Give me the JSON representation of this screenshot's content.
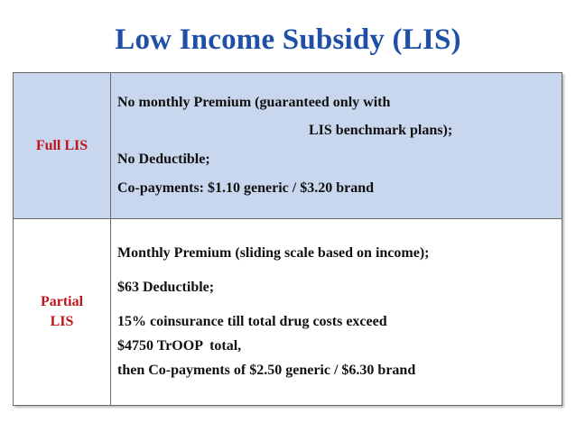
{
  "title": "Low Income Subsidy (LIS)",
  "full_lis": {
    "label": "Full LIS",
    "lines": [
      "No monthly Premium (guaranteed only with",
      "LIS benchmark plans);",
      "No Deductible;",
      "Co-payments: $1.10 generic / $3.20 brand"
    ]
  },
  "partial_lis": {
    "label_line1": "Partial",
    "label_line2": "LIS",
    "lines": [
      "Monthly Premium (sliding scale based on income);",
      "$63 Deductible;",
      "15% coinsurance till total drug costs exceed",
      "$4750 TrOOP  total,",
      "then Co-payments of $2.50 generic / $6.30 brand"
    ]
  },
  "colors": {
    "title": "#1f4fa6",
    "label": "#c0141c",
    "full_row_bg": "#c8d6ee"
  }
}
